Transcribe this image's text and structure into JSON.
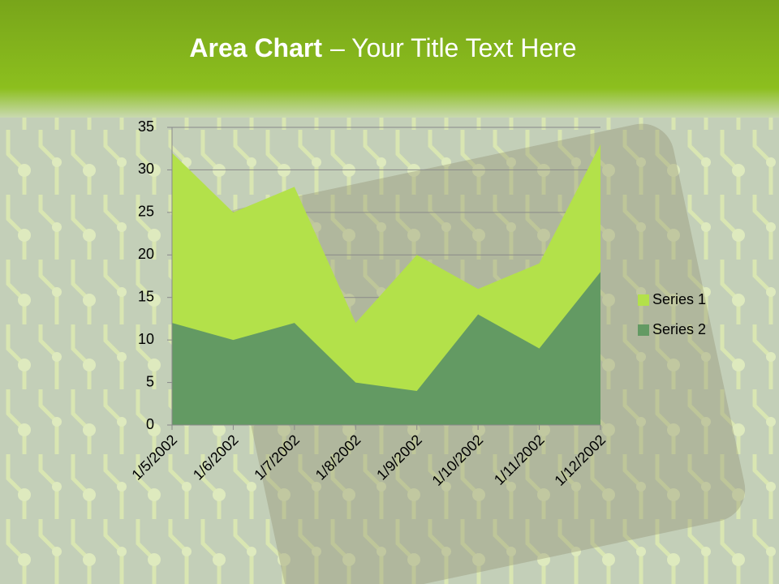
{
  "chart_data": {
    "type": "area",
    "title": {
      "bold": "Area Chart",
      "rest": "– Your Title Text Here"
    },
    "categories": [
      "1/5/2002",
      "1/6/2002",
      "1/7/2002",
      "1/8/2002",
      "1/9/2002",
      "1/10/2002",
      "1/11/2002",
      "1/12/2002"
    ],
    "series": [
      {
        "name": "Series 1",
        "color": "#b3e14a",
        "values": [
          32,
          25,
          28,
          12,
          20,
          16,
          19,
          33
        ]
      },
      {
        "name": "Series 2",
        "color": "#639a63",
        "values": [
          12,
          10,
          12,
          5,
          4,
          13,
          9,
          18
        ]
      }
    ],
    "ylim": [
      0,
      35
    ],
    "yticks": [
      0,
      5,
      10,
      15,
      20,
      25,
      30,
      35
    ],
    "grid": true,
    "legend": "right"
  }
}
